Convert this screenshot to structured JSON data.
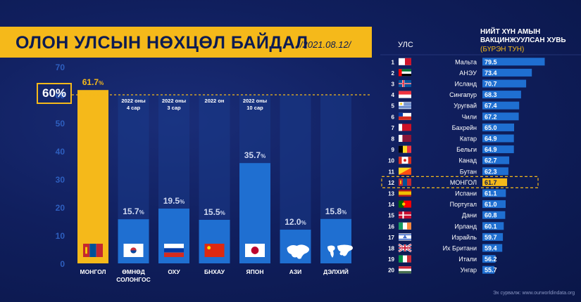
{
  "header": {
    "title": "ОЛОН УЛСЫН НӨХЦӨЛ БАЙДАЛ",
    "date": "/2021.08.12/"
  },
  "threshold_label": "60%",
  "colors": {
    "accent": "#f5b91a",
    "bar": "#1f6fd1",
    "background": "#0d1b52",
    "highlight": "#f5b91a"
  },
  "chart_data": [
    {
      "type": "bar",
      "categories": [
        "МОНГОЛ",
        "ӨМНӨД СОЛОНГОС",
        "ОХУ",
        "БНХАУ",
        "ЯПОН",
        "АЗИ",
        "ДЭЛХИЙ"
      ],
      "category_lines": [
        [
          "МОНГОЛ"
        ],
        [
          "ӨМНӨД",
          "СОЛОНГОС"
        ],
        [
          "ОХУ"
        ],
        [
          "БНХАУ"
        ],
        [
          "ЯПОН"
        ],
        [
          "АЗИ"
        ],
        [
          "ДЭЛХИЙ"
        ]
      ],
      "values": [
        61.7,
        15.7,
        19.5,
        15.5,
        35.7,
        12.0,
        15.8
      ],
      "value_labels": [
        "61.7",
        "15.7",
        "19.5",
        "15.5",
        "35.7",
        "12.0",
        "15.8"
      ],
      "value_suffix": "%",
      "notes": [
        [],
        [
          "2022 оны",
          "4 сар"
        ],
        [
          "2022 оны",
          "3 сар"
        ],
        [
          "2022 он"
        ],
        [
          "2022 оны",
          "10 сар"
        ],
        [],
        []
      ],
      "icons": [
        "mongolia-flag-icon",
        "south-korea-flag-icon",
        "russia-flag-icon",
        "china-flag-icon",
        "japan-flag-icon",
        "asia-map-icon",
        "world-map-icon"
      ],
      "yticks": [
        "0",
        "10",
        "20",
        "30",
        "40",
        "50",
        "60",
        "70"
      ],
      "ylim": [
        0,
        70
      ],
      "threshold": 60,
      "grid": false,
      "legend": "none"
    },
    {
      "type": "bar",
      "orientation": "horizontal",
      "title": "НИЙТ ХҮН АМЫН ВАКЦИНЖУУЛСАН ХУВЬ",
      "title_lines": [
        "НИЙТ ХҮН АМЫН",
        "ВАКЦИНЖУУЛСАН ХУВЬ"
      ],
      "subtitle": "(БҮРЭН ТУН)",
      "column_label": "УЛС",
      "ranks": [
        "1",
        "2",
        "3",
        "4",
        "5",
        "6",
        "7",
        "8",
        "9",
        "10",
        "11",
        "12",
        "13",
        "14",
        "15",
        "16",
        "17",
        "18",
        "19",
        "20"
      ],
      "categories": [
        "Мальта",
        "АНЭУ",
        "Исланд",
        "Сингапур",
        "Уругвай",
        "Чили",
        "Бахрейн",
        "Катар",
        "Бельги",
        "Канад",
        "Бутан",
        "МОНГОЛ",
        "Испани",
        "Португал",
        "Дани",
        "Ирланд",
        "Израйль",
        "Их Британи",
        "Итали",
        "Унгар"
      ],
      "values": [
        79.5,
        73.4,
        70.7,
        68.3,
        67.4,
        67.2,
        65.0,
        64.9,
        64.9,
        62.7,
        62.3,
        61.7,
        61.1,
        61.0,
        60.8,
        60.1,
        59.7,
        59.4,
        56.2,
        55.7
      ],
      "value_labels": [
        "79.5",
        "73.4",
        "70.7",
        "68.3",
        "67.4",
        "67.2",
        "65.0",
        "64.9",
        "64.9",
        "62.7",
        "62.3",
        "61.7",
        "61.1",
        "61.0",
        "60.8",
        "60.1",
        "59.7",
        "59.4",
        "56.2",
        "55.7"
      ],
      "flags": [
        "malta-flag-icon",
        "uae-flag-icon",
        "iceland-flag-icon",
        "singapore-flag-icon",
        "uruguay-flag-icon",
        "chile-flag-icon",
        "bahrain-flag-icon",
        "qatar-flag-icon",
        "belgium-flag-icon",
        "canada-flag-icon",
        "bhutan-flag-icon",
        "mongolia-flag-icon",
        "spain-flag-icon",
        "portugal-flag-icon",
        "denmark-flag-icon",
        "ireland-flag-icon",
        "israel-flag-icon",
        "uk-flag-icon",
        "italy-flag-icon",
        "hungary-flag-icon"
      ],
      "highlight_index": 11,
      "legend": "none"
    }
  ],
  "source": "Эх сурвалж: www.ourworldindata.org"
}
